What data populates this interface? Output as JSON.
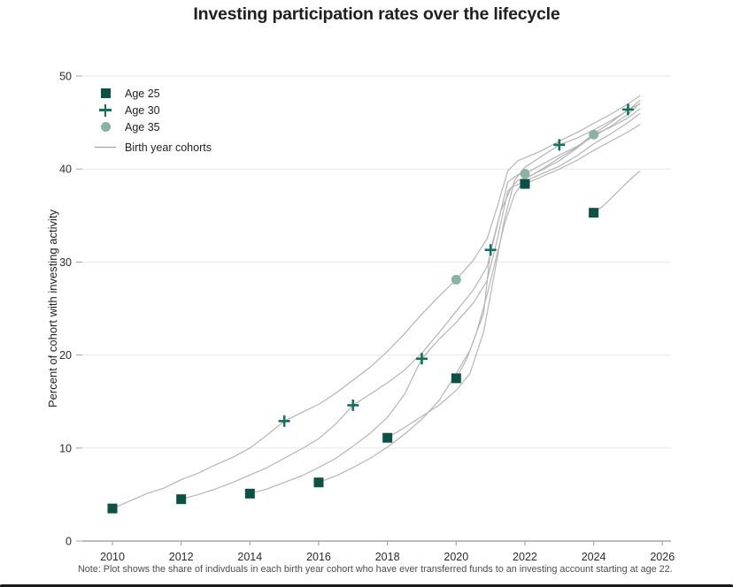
{
  "title": "Investing participation rates over the lifecycle",
  "note": "Note: Plot shows the share of indivduals in each birth year cohort who have ever transferred funds to an investing account starting at age 22.",
  "y_axis_label": "Percent of cohort with investing activity",
  "legend": {
    "items": [
      {
        "label": "Age 25",
        "marker": "square"
      },
      {
        "label": "Age 30",
        "marker": "plus"
      },
      {
        "label": "Age 35",
        "marker": "circle"
      },
      {
        "label": "Birth year cohorts",
        "marker": "line"
      }
    ]
  },
  "colors": {
    "age25": "#0c5244",
    "age30": "#17705b",
    "age35": "#8ab3a3",
    "cohort_line": "#b5b5b5",
    "gridline": "#e8e8e8",
    "axis": "#a6a6a6",
    "tick_text": "#2b2b2b"
  },
  "chart_data": {
    "type": "line",
    "title": "Investing participation rates over the lifecycle",
    "xlabel": "",
    "ylabel": "Percent of cohort with investing activity",
    "xlim": [
      2009.1,
      2026.3
    ],
    "ylim": [
      0,
      50
    ],
    "x_ticks": [
      2010,
      2012,
      2014,
      2016,
      2018,
      2020,
      2022,
      2024,
      2026
    ],
    "y_ticks": [
      0,
      10,
      20,
      30,
      40,
      50
    ],
    "grid": "horizontal-only",
    "legend_position": "top-left",
    "marker_series": [
      {
        "name": "Age 25",
        "marker": "square",
        "points": [
          [
            2010,
            3.5
          ],
          [
            2012,
            4.5
          ],
          [
            2014,
            5.1
          ],
          [
            2016,
            6.3
          ],
          [
            2018,
            11.1
          ],
          [
            2020,
            17.5
          ],
          [
            2022,
            38.4
          ],
          [
            2024,
            35.3
          ]
        ]
      },
      {
        "name": "Age 30",
        "marker": "plus",
        "points": [
          [
            2015,
            12.9
          ],
          [
            2017,
            14.6
          ],
          [
            2019,
            19.6
          ],
          [
            2021,
            31.3
          ],
          [
            2023,
            42.6
          ],
          [
            2025,
            46.4
          ]
        ]
      },
      {
        "name": "Age 35",
        "marker": "circle",
        "points": [
          [
            2020,
            28.1
          ],
          [
            2022,
            39.5
          ],
          [
            2024,
            43.7
          ]
        ]
      }
    ],
    "cohort_lines": [
      {
        "name": "cohort-age25-2010",
        "points": [
          [
            2010,
            3.5
          ],
          [
            2010.5,
            4.3
          ],
          [
            2011,
            5.1
          ],
          [
            2011.5,
            5.7
          ],
          [
            2012,
            6.6
          ],
          [
            2012.5,
            7.3
          ],
          [
            2013,
            8.2
          ],
          [
            2013.5,
            9.0
          ],
          [
            2014,
            10.0
          ],
          [
            2014.5,
            11.4
          ],
          [
            2015,
            12.9
          ],
          [
            2015.5,
            13.8
          ],
          [
            2016,
            14.7
          ],
          [
            2016.5,
            15.9
          ],
          [
            2017,
            17.3
          ],
          [
            2017.5,
            18.7
          ],
          [
            2018,
            20.4
          ],
          [
            2018.5,
            22.3
          ],
          [
            2019,
            24.4
          ],
          [
            2019.5,
            26.3
          ],
          [
            2020,
            28.1
          ],
          [
            2020.5,
            30.2
          ],
          [
            2020.9,
            32.5
          ],
          [
            2021.2,
            36.0
          ],
          [
            2021.5,
            39.8
          ],
          [
            2021.8,
            40.9
          ],
          [
            2022,
            41.2
          ],
          [
            2022.5,
            42.0
          ],
          [
            2023,
            43.0
          ],
          [
            2023.5,
            43.9
          ],
          [
            2024,
            44.9
          ],
          [
            2024.5,
            45.9
          ],
          [
            2025,
            47.0
          ],
          [
            2025.35,
            47.9
          ]
        ]
      },
      {
        "name": "cohort-age25-2012",
        "points": [
          [
            2012,
            4.5
          ],
          [
            2012.5,
            5.0
          ],
          [
            2013,
            5.6
          ],
          [
            2013.5,
            6.3
          ],
          [
            2014,
            7.1
          ],
          [
            2014.5,
            7.9
          ],
          [
            2015,
            8.9
          ],
          [
            2015.5,
            9.9
          ],
          [
            2016,
            11.0
          ],
          [
            2016.5,
            12.6
          ],
          [
            2017,
            14.6
          ],
          [
            2017.5,
            15.8
          ],
          [
            2018,
            17.0
          ],
          [
            2018.5,
            18.4
          ],
          [
            2019,
            20.2
          ],
          [
            2019.5,
            22.4
          ],
          [
            2020,
            24.7
          ],
          [
            2020.5,
            27.0
          ],
          [
            2020.9,
            29.5
          ],
          [
            2021.2,
            34.0
          ],
          [
            2021.5,
            38.6
          ],
          [
            2021.8,
            39.4
          ],
          [
            2022,
            39.5
          ],
          [
            2022.5,
            40.5
          ],
          [
            2023,
            41.5
          ],
          [
            2023.5,
            42.4
          ],
          [
            2024,
            43.5
          ],
          [
            2024.5,
            44.6
          ],
          [
            2025,
            45.9
          ],
          [
            2025.35,
            47.1
          ]
        ]
      },
      {
        "name": "cohort-age25-2014",
        "points": [
          [
            2014,
            5.1
          ],
          [
            2014.5,
            5.6
          ],
          [
            2015,
            6.3
          ],
          [
            2015.5,
            7.0
          ],
          [
            2016,
            7.9
          ],
          [
            2016.5,
            8.9
          ],
          [
            2017,
            10.2
          ],
          [
            2017.5,
            11.6
          ],
          [
            2018,
            13.3
          ],
          [
            2018.5,
            15.8
          ],
          [
            2019,
            19.6
          ],
          [
            2019.5,
            21.7
          ],
          [
            2020,
            23.5
          ],
          [
            2020.5,
            25.6
          ],
          [
            2020.9,
            28.0
          ],
          [
            2021.2,
            32.5
          ],
          [
            2021.5,
            37.6
          ],
          [
            2021.8,
            38.8
          ],
          [
            2022,
            39.0
          ],
          [
            2022.5,
            39.9
          ],
          [
            2023,
            40.9
          ],
          [
            2023.5,
            42.2
          ],
          [
            2024,
            43.7
          ],
          [
            2024.5,
            44.5
          ],
          [
            2025,
            45.5
          ],
          [
            2025.35,
            46.5
          ]
        ]
      },
      {
        "name": "cohort-age25-2016",
        "points": [
          [
            2016,
            6.3
          ],
          [
            2016.5,
            7.0
          ],
          [
            2017,
            7.9
          ],
          [
            2017.5,
            8.9
          ],
          [
            2018,
            10.1
          ],
          [
            2018.5,
            11.5
          ],
          [
            2019,
            13.1
          ],
          [
            2019.5,
            15.1
          ],
          [
            2020,
            18.0
          ],
          [
            2020.4,
            20.5
          ],
          [
            2020.8,
            24.5
          ],
          [
            2021,
            31.3
          ],
          [
            2021.3,
            35.5
          ],
          [
            2021.6,
            38.0
          ],
          [
            2022,
            38.7
          ],
          [
            2022.5,
            39.5
          ],
          [
            2023,
            40.3
          ],
          [
            2023.5,
            41.4
          ],
          [
            2024,
            42.7
          ],
          [
            2024.5,
            43.8
          ],
          [
            2025,
            45.0
          ],
          [
            2025.35,
            46.0
          ]
        ]
      },
      {
        "name": "cohort-age25-2018",
        "points": [
          [
            2018,
            11.1
          ],
          [
            2018.5,
            12.2
          ],
          [
            2019,
            13.4
          ],
          [
            2019.5,
            14.6
          ],
          [
            2020,
            16.2
          ],
          [
            2020.4,
            18.0
          ],
          [
            2020.8,
            22.5
          ],
          [
            2021.1,
            28.5
          ],
          [
            2021.4,
            34.5
          ],
          [
            2021.7,
            38.8
          ],
          [
            2022,
            40.2
          ],
          [
            2022.5,
            41.4
          ],
          [
            2023,
            42.6
          ],
          [
            2023.5,
            43.3
          ],
          [
            2024,
            44.2
          ],
          [
            2024.5,
            45.2
          ],
          [
            2025,
            46.3
          ],
          [
            2025.35,
            47.4
          ]
        ]
      },
      {
        "name": "cohort-age25-2020",
        "points": [
          [
            2020,
            17.5
          ],
          [
            2020.3,
            19.5
          ],
          [
            2020.6,
            22.5
          ],
          [
            2020.9,
            26.5
          ],
          [
            2021.1,
            29.5
          ],
          [
            2021.4,
            34.0
          ],
          [
            2021.7,
            37.3
          ],
          [
            2022,
            38.9
          ],
          [
            2022.5,
            40.0
          ],
          [
            2023,
            41.2
          ],
          [
            2023.5,
            42.3
          ],
          [
            2024,
            43.8
          ],
          [
            2024.5,
            45.0
          ],
          [
            2025,
            46.4
          ],
          [
            2025.35,
            47.0
          ]
        ]
      },
      {
        "name": "cohort-age25-2022",
        "points": [
          [
            2022,
            38.4
          ],
          [
            2022.5,
            39.2
          ],
          [
            2023,
            40.0
          ],
          [
            2023.5,
            40.9
          ],
          [
            2024,
            42.0
          ],
          [
            2024.5,
            43.0
          ],
          [
            2025,
            44.0
          ],
          [
            2025.35,
            44.8
          ]
        ]
      },
      {
        "name": "cohort-age25-2024",
        "points": [
          [
            2024,
            35.3
          ],
          [
            2024.3,
            36.1
          ],
          [
            2024.6,
            37.2
          ],
          [
            2024.9,
            38.3
          ],
          [
            2025.1,
            39.0
          ],
          [
            2025.35,
            39.8
          ]
        ]
      }
    ]
  }
}
